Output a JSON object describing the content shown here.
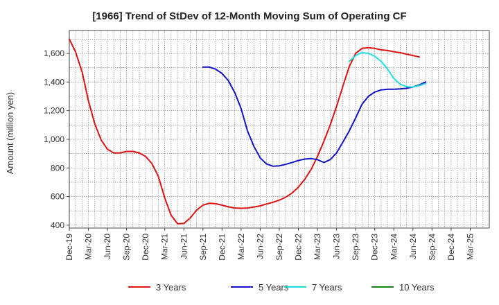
{
  "chart_data": {
    "type": "line",
    "title": "[1966]  Trend of StDev of 12-Month Moving Sum of Operating CF",
    "ylabel": "Amount (million yen)",
    "xlabel": "",
    "ylim": [
      380,
      1760
    ],
    "yticks": [
      400,
      600,
      800,
      1000,
      1200,
      1400,
      1600
    ],
    "ytick_labels": [
      "400",
      "600",
      "800",
      "1,000",
      "1,200",
      "1,400",
      "1,600"
    ],
    "categories": [
      "Dec-19",
      "Mar-20",
      "Jun-20",
      "Sep-20",
      "Dec-20",
      "Mar-21",
      "Jun-21",
      "Sep-21",
      "Dec-21",
      "Mar-22",
      "Jun-22",
      "Sep-22",
      "Dec-22",
      "Mar-23",
      "Jun-23",
      "Sep-23",
      "Dec-23",
      "Mar-24",
      "Jun-24",
      "Sep-24",
      "Dec-24",
      "Mar-25"
    ],
    "grid": true,
    "legend_position": "bottom",
    "series": [
      {
        "name": "3 Years",
        "color": "#dd1111",
        "points": [
          [
            0,
            1700
          ],
          [
            0.33,
            1610
          ],
          [
            0.67,
            1470
          ],
          [
            1,
            1270
          ],
          [
            1.33,
            1110
          ],
          [
            1.67,
            995
          ],
          [
            2,
            930
          ],
          [
            2.33,
            905
          ],
          [
            2.67,
            905
          ],
          [
            3,
            915
          ],
          [
            3.33,
            915
          ],
          [
            3.67,
            905
          ],
          [
            4,
            880
          ],
          [
            4.33,
            830
          ],
          [
            4.67,
            740
          ],
          [
            5,
            590
          ],
          [
            5.33,
            470
          ],
          [
            5.67,
            410
          ],
          [
            6,
            412
          ],
          [
            6.33,
            450
          ],
          [
            6.67,
            505
          ],
          [
            7,
            540
          ],
          [
            7.33,
            553
          ],
          [
            7.67,
            550
          ],
          [
            8,
            540
          ],
          [
            8.33,
            528
          ],
          [
            8.67,
            520
          ],
          [
            9,
            518
          ],
          [
            9.33,
            520
          ],
          [
            9.67,
            527
          ],
          [
            10,
            535
          ],
          [
            10.33,
            548
          ],
          [
            10.67,
            560
          ],
          [
            11,
            575
          ],
          [
            11.33,
            595
          ],
          [
            11.67,
            625
          ],
          [
            12,
            665
          ],
          [
            12.33,
            720
          ],
          [
            12.67,
            790
          ],
          [
            13,
            880
          ],
          [
            13.33,
            985
          ],
          [
            13.67,
            1100
          ],
          [
            14,
            1230
          ],
          [
            14.33,
            1370
          ],
          [
            14.67,
            1510
          ],
          [
            15,
            1600
          ],
          [
            15.33,
            1635
          ],
          [
            15.67,
            1640
          ],
          [
            16,
            1635
          ],
          [
            16.33,
            1625
          ],
          [
            16.67,
            1620
          ],
          [
            17,
            1612
          ],
          [
            17.33,
            1605
          ],
          [
            17.67,
            1595
          ],
          [
            18,
            1585
          ],
          [
            18.33,
            1575
          ]
        ]
      },
      {
        "name": "5 Years",
        "color": "#1111cc",
        "points": [
          [
            7,
            1505
          ],
          [
            7.33,
            1505
          ],
          [
            7.67,
            1490
          ],
          [
            8,
            1460
          ],
          [
            8.33,
            1410
          ],
          [
            8.67,
            1325
          ],
          [
            9,
            1215
          ],
          [
            9.33,
            1060
          ],
          [
            9.67,
            950
          ],
          [
            10,
            870
          ],
          [
            10.33,
            828
          ],
          [
            10.67,
            812
          ],
          [
            11,
            815
          ],
          [
            11.33,
            825
          ],
          [
            11.67,
            838
          ],
          [
            12,
            852
          ],
          [
            12.33,
            862
          ],
          [
            12.67,
            865
          ],
          [
            13,
            858
          ],
          [
            13.33,
            838
          ],
          [
            13.67,
            858
          ],
          [
            14,
            905
          ],
          [
            14.33,
            980
          ],
          [
            14.67,
            1060
          ],
          [
            15,
            1150
          ],
          [
            15.33,
            1245
          ],
          [
            15.67,
            1300
          ],
          [
            16,
            1330
          ],
          [
            16.33,
            1345
          ],
          [
            16.67,
            1350
          ],
          [
            17,
            1350
          ],
          [
            17.33,
            1352
          ],
          [
            17.67,
            1356
          ],
          [
            18,
            1365
          ],
          [
            18.33,
            1380
          ],
          [
            18.67,
            1400
          ]
        ]
      },
      {
        "name": "7 Years",
        "color": "#22dddd",
        "points": [
          [
            14.67,
            1545
          ],
          [
            15,
            1585
          ],
          [
            15.33,
            1605
          ],
          [
            15.67,
            1600
          ],
          [
            16,
            1580
          ],
          [
            16.33,
            1545
          ],
          [
            16.67,
            1490
          ],
          [
            17,
            1425
          ],
          [
            17.33,
            1385
          ],
          [
            17.67,
            1368
          ],
          [
            18,
            1365
          ],
          [
            18.33,
            1375
          ],
          [
            18.67,
            1390
          ]
        ]
      },
      {
        "name": "10 Years",
        "color": "#118811",
        "points": []
      }
    ]
  }
}
